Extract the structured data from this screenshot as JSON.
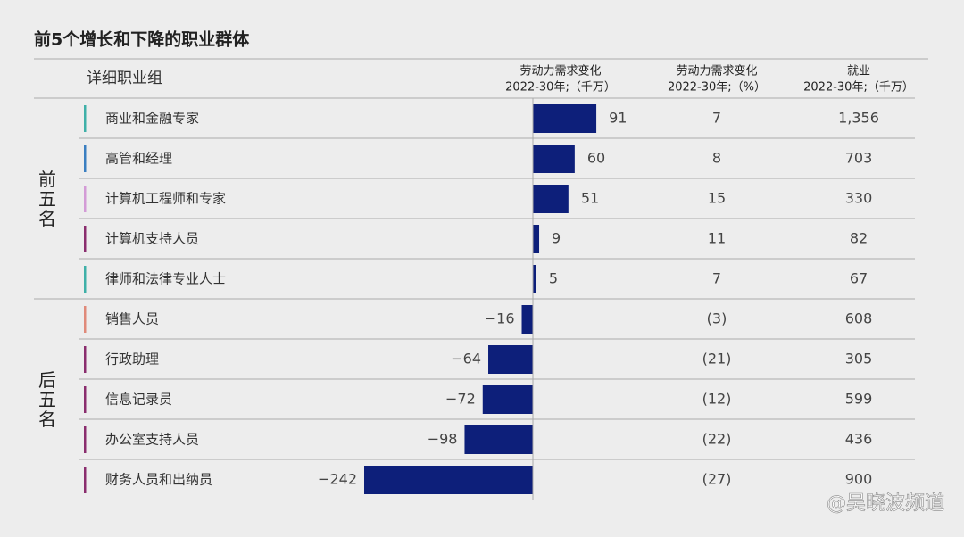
{
  "title": "前5个增长和下降的职业群体",
  "watermark": "@吴晓波频道",
  "chart_data": {
    "type": "bar",
    "orientation": "horizontal",
    "color": "#0d1f7a",
    "headers": {
      "category": "详细职业组",
      "change": [
        "劳动力需求变化",
        "2022-30年;（千万）"
      ],
      "pct": [
        "劳动力需求变化",
        "2022-30年;（%）"
      ],
      "employment": [
        "就业",
        "2022-30年;（千万）"
      ]
    },
    "groups": [
      {
        "label": "前五名",
        "rows": [
          {
            "name": "商业和金融专家",
            "color": "#3fb0a8",
            "change": 91,
            "change_label": "91",
            "pct": 7,
            "pct_label": "7",
            "employment": 1356,
            "employment_label": "1,356"
          },
          {
            "name": "高管和经理",
            "color": "#3a7fc1",
            "change": 60,
            "change_label": "60",
            "pct": 8,
            "pct_label": "8",
            "employment": 703,
            "employment_label": "703"
          },
          {
            "name": "计算机工程师和专家",
            "color": "#d39bd6",
            "change": 51,
            "change_label": "51",
            "pct": 15,
            "pct_label": "15",
            "employment": 330,
            "employment_label": "330"
          },
          {
            "name": "计算机支持人员",
            "color": "#8a2d6e",
            "change": 9,
            "change_label": "9",
            "pct": 11,
            "pct_label": "11",
            "employment": 82,
            "employment_label": "82"
          },
          {
            "name": "律师和法律专业人士",
            "color": "#3fb0a8",
            "change": 5,
            "change_label": "5",
            "pct": 7,
            "pct_label": "7",
            "employment": 67,
            "employment_label": "67"
          }
        ]
      },
      {
        "label": "后五名",
        "rows": [
          {
            "name": "销售人员",
            "color": "#e08a7a",
            "change": -16,
            "change_label": "−16",
            "pct": -3,
            "pct_label": "(3)",
            "employment": 608,
            "employment_label": "608"
          },
          {
            "name": "行政助理",
            "color": "#8a2d6e",
            "change": -64,
            "change_label": "−64",
            "pct": -21,
            "pct_label": "(21)",
            "employment": 305,
            "employment_label": "305"
          },
          {
            "name": "信息记录员",
            "color": "#8a2d6e",
            "change": -72,
            "change_label": "−72",
            "pct": -12,
            "pct_label": "(12)",
            "employment": 599,
            "employment_label": "599"
          },
          {
            "name": "办公室支持人员",
            "color": "#8a2d6e",
            "change": -98,
            "change_label": "−98",
            "pct": -22,
            "pct_label": "(22)",
            "employment": 436,
            "employment_label": "436"
          },
          {
            "name": "财务人员和出纳员",
            "color": "#8a2d6e",
            "change": -242,
            "change_label": "−242",
            "pct": -27,
            "pct_label": "(27)",
            "employment": 900,
            "employment_label": "900"
          }
        ]
      }
    ]
  }
}
